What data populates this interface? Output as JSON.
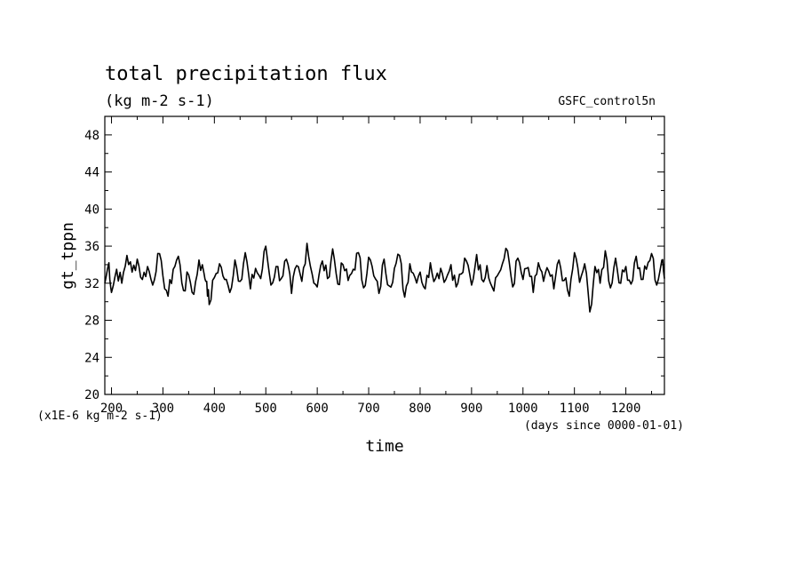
{
  "chart_data": {
    "type": "line",
    "title": "total precipitation flux",
    "subtitle": "(kg m-2 s-1)",
    "dataset_label": "GSFC_control5n",
    "xlabel": "time",
    "ylabel": "gt_tppn",
    "x_units": "(days since 0000-01-01)",
    "y_units": "(x1E-6 kg m-2 s-1)",
    "xlim": [
      187,
      1275
    ],
    "ylim": [
      20,
      50
    ],
    "x_ticks": [
      200,
      300,
      400,
      500,
      600,
      700,
      800,
      900,
      1000,
      1100,
      1200
    ],
    "y_ticks": [
      20,
      24,
      28,
      32,
      36,
      40,
      44,
      48
    ],
    "grid": false,
    "line_color": "#000000",
    "series": [
      {
        "x": [
          187,
          195,
          200,
          210,
          220,
          230,
          240,
          250,
          260,
          270,
          280,
          290,
          300,
          310,
          320,
          330,
          340,
          350,
          360,
          370,
          380,
          385,
          390,
          400,
          410,
          420,
          430,
          440,
          450,
          460,
          470,
          480,
          490,
          500,
          510,
          520,
          530,
          540,
          550,
          560,
          570,
          580,
          590,
          600,
          610,
          620,
          630,
          640,
          650,
          660,
          670,
          680,
          690,
          700,
          710,
          720,
          730,
          740,
          750,
          760,
          770,
          780,
          790,
          800,
          810,
          820,
          830,
          840,
          850,
          860,
          870,
          880,
          890,
          900,
          910,
          920,
          930,
          940,
          950,
          960,
          970,
          980,
          990,
          1000,
          1010,
          1020,
          1030,
          1040,
          1050,
          1060,
          1070,
          1080,
          1090,
          1100,
          1110,
          1120,
          1130,
          1140,
          1150,
          1160,
          1170,
          1180,
          1190,
          1200,
          1210,
          1220,
          1230,
          1240,
          1250,
          1260,
          1270,
          1275
        ],
        "y": [
          32.0,
          34.2,
          31.0,
          33.5,
          32.0,
          35.0,
          33.2,
          34.6,
          32.4,
          33.8,
          31.8,
          35.2,
          32.8,
          30.6,
          33.5,
          34.9,
          31.2,
          32.9,
          30.8,
          34.5,
          33.0,
          32.2,
          29.7,
          32.6,
          34.1,
          32.4,
          31.0,
          34.5,
          32.2,
          35.3,
          31.4,
          33.6,
          32.5,
          36.0,
          31.8,
          33.8,
          32.5,
          34.6,
          30.9,
          33.9,
          32.2,
          36.3,
          33.0,
          31.6,
          34.4,
          32.5,
          35.7,
          31.9,
          34.0,
          32.3,
          33.5,
          35.3,
          31.5,
          34.8,
          32.8,
          30.9,
          34.6,
          31.7,
          33.6,
          35.0,
          30.5,
          34.1,
          32.6,
          33.2,
          31.4,
          34.2,
          32.5,
          33.6,
          32.4,
          34.0,
          31.6,
          33.0,
          34.4,
          31.8,
          35.1,
          32.4,
          33.9,
          31.6,
          32.8,
          34.1,
          35.5,
          31.6,
          34.7,
          32.4,
          33.7,
          31.0,
          34.2,
          32.2,
          33.3,
          31.4,
          34.5,
          32.3,
          30.6,
          35.3,
          32.1,
          34.1,
          28.9,
          33.8,
          32.0,
          35.5,
          31.5,
          34.7,
          32.0,
          33.8,
          31.9,
          34.9,
          32.4,
          33.5,
          35.2,
          31.8,
          34.5,
          32.5
        ]
      }
    ]
  }
}
